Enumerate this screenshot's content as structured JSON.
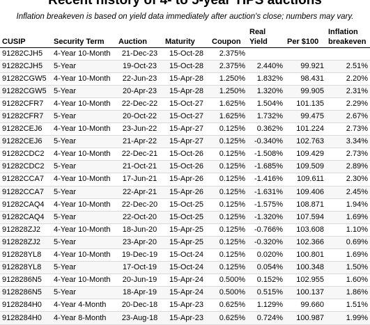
{
  "title": "Recent history of 4- to 5-year TIPS auctions",
  "note": "Inflation breakeven is based on yield data immediately after auction's close; numbers may vary.",
  "headers": {
    "cusip": "CUSIP",
    "term": "Security Term",
    "auction": "Auction",
    "maturity": "Maturity",
    "coupon": "Coupon",
    "real_yield": "Real Yield",
    "per100": "Per $100",
    "breakeven": "Inflation breakeven"
  },
  "rows": [
    {
      "cusip": "91282CJH5",
      "term": "4-Year 10-Month",
      "auction": "21-Dec-23",
      "maturity": "15-Oct-28",
      "coupon": "2.375%",
      "yield": "",
      "per100": "",
      "breakeven": ""
    },
    {
      "cusip": "91282CJH5",
      "term": "5-Year",
      "auction": "19-Oct-23",
      "maturity": "15-Oct-28",
      "coupon": "2.375%",
      "yield": "2.440%",
      "per100": "99.921",
      "breakeven": "2.51%"
    },
    {
      "cusip": "91282CGW5",
      "term": "4-Year 10-Month",
      "auction": "22-Jun-23",
      "maturity": "15-Apr-28",
      "coupon": "1.250%",
      "yield": "1.832%",
      "per100": "98.431",
      "breakeven": "2.20%"
    },
    {
      "cusip": "91282CGW5",
      "term": "5-Year",
      "auction": "20-Apr-23",
      "maturity": "15-Apr-28",
      "coupon": "1.250%",
      "yield": "1.320%",
      "per100": "99.905",
      "breakeven": "2.31%"
    },
    {
      "cusip": "91282CFR7",
      "term": "4-Year 10-Month",
      "auction": "22-Dec-22",
      "maturity": "15-Oct-27",
      "coupon": "1.625%",
      "yield": "1.504%",
      "per100": "101.135",
      "breakeven": "2.29%"
    },
    {
      "cusip": "91282CFR7",
      "term": "5-Year",
      "auction": "20-Oct-22",
      "maturity": "15-Oct-27",
      "coupon": "1.625%",
      "yield": "1.732%",
      "per100": "99.475",
      "breakeven": "2.67%"
    },
    {
      "cusip": "91282CEJ6",
      "term": "4-Year 10-Month",
      "auction": "23-Jun-22",
      "maturity": "15-Apr-27",
      "coupon": "0.125%",
      "yield": "0.362%",
      "per100": "101.224",
      "breakeven": "2.73%"
    },
    {
      "cusip": "91282CEJ6",
      "term": "5-Year",
      "auction": "21-Apr-22",
      "maturity": "15-Apr-27",
      "coupon": "0.125%",
      "yield": "-0.340%",
      "per100": "102.763",
      "breakeven": "3.34%"
    },
    {
      "cusip": "91282CDC2",
      "term": "4-Year 10-Month",
      "auction": "22-Dec-21",
      "maturity": "15-Oct-26",
      "coupon": "0.125%",
      "yield": "-1.508%",
      "per100": "109.429",
      "breakeven": "2.73%"
    },
    {
      "cusip": "91282CDC2",
      "term": "5-Year",
      "auction": "21-Oct-21",
      "maturity": "15-Oct-26",
      "coupon": "0.125%",
      "yield": "-1.685%",
      "per100": "109.509",
      "breakeven": "2.89%"
    },
    {
      "cusip": "91282CCA7",
      "term": "4-Year 10-Month",
      "auction": "17-Jun-21",
      "maturity": "15-Apr-26",
      "coupon": "0.125%",
      "yield": "-1.416%",
      "per100": "109.611",
      "breakeven": "2.30%"
    },
    {
      "cusip": "91282CCA7",
      "term": "5-Year",
      "auction": "22-Apr-21",
      "maturity": "15-Apr-26",
      "coupon": "0.125%",
      "yield": "-1.631%",
      "per100": "109.406",
      "breakeven": "2.45%"
    },
    {
      "cusip": "91282CAQ4",
      "term": "4-Year 10-Month",
      "auction": "22-Dec-20",
      "maturity": "15-Oct-25",
      "coupon": "0.125%",
      "yield": "-1.575%",
      "per100": "108.871",
      "breakeven": "1.94%"
    },
    {
      "cusip": "91282CAQ4",
      "term": "5-Year",
      "auction": "22-Oct-20",
      "maturity": "15-Oct-25",
      "coupon": "0.125%",
      "yield": "-1.320%",
      "per100": "107.594",
      "breakeven": "1.69%"
    },
    {
      "cusip": "912828ZJ2",
      "term": "4-Year 10-Month",
      "auction": "18-Jun-20",
      "maturity": "15-Apr-25",
      "coupon": "0.125%",
      "yield": "-0.766%",
      "per100": "103.608",
      "breakeven": "1.10%"
    },
    {
      "cusip": "912828ZJ2",
      "term": "5-Year",
      "auction": "23-Apr-20",
      "maturity": "15-Apr-25",
      "coupon": "0.125%",
      "yield": "-0.320%",
      "per100": "102.366",
      "breakeven": "0.69%"
    },
    {
      "cusip": "912828YL8",
      "term": "4-Year 10-Month",
      "auction": "19-Dec-19",
      "maturity": "15-Oct-24",
      "coupon": "0.125%",
      "yield": "0.020%",
      "per100": "100.801",
      "breakeven": "1.69%"
    },
    {
      "cusip": "912828YL8",
      "term": "5-Year",
      "auction": "17-Oct-19",
      "maturity": "15-Oct-24",
      "coupon": "0.125%",
      "yield": "0.054%",
      "per100": "100.348",
      "breakeven": "1.50%"
    },
    {
      "cusip": "9128286N5",
      "term": "4-Year 10-Month",
      "auction": "20-Jun-19",
      "maturity": "15-Apr-24",
      "coupon": "0.500%",
      "yield": "0.152%",
      "per100": "102.955",
      "breakeven": "1.60%"
    },
    {
      "cusip": "9128286N5",
      "term": "5-Year",
      "auction": "18-Apr-19",
      "maturity": "15-Apr-24",
      "coupon": "0.500%",
      "yield": "0.515%",
      "per100": "100.137",
      "breakeven": "1.86%"
    },
    {
      "cusip": "9128284H0",
      "term": "4-Year 4-Month",
      "auction": "20-Dec-18",
      "maturity": "15-Apr-23",
      "coupon": "0.625%",
      "yield": "1.129%",
      "per100": "99.660",
      "breakeven": "1.51%"
    },
    {
      "cusip": "9128284H0",
      "term": "4-Year 8-Month",
      "auction": "23-Aug-18",
      "maturity": "15-Apr-23",
      "coupon": "0.625%",
      "yield": "0.724%",
      "per100": "100.987",
      "breakeven": "1.99%"
    }
  ]
}
